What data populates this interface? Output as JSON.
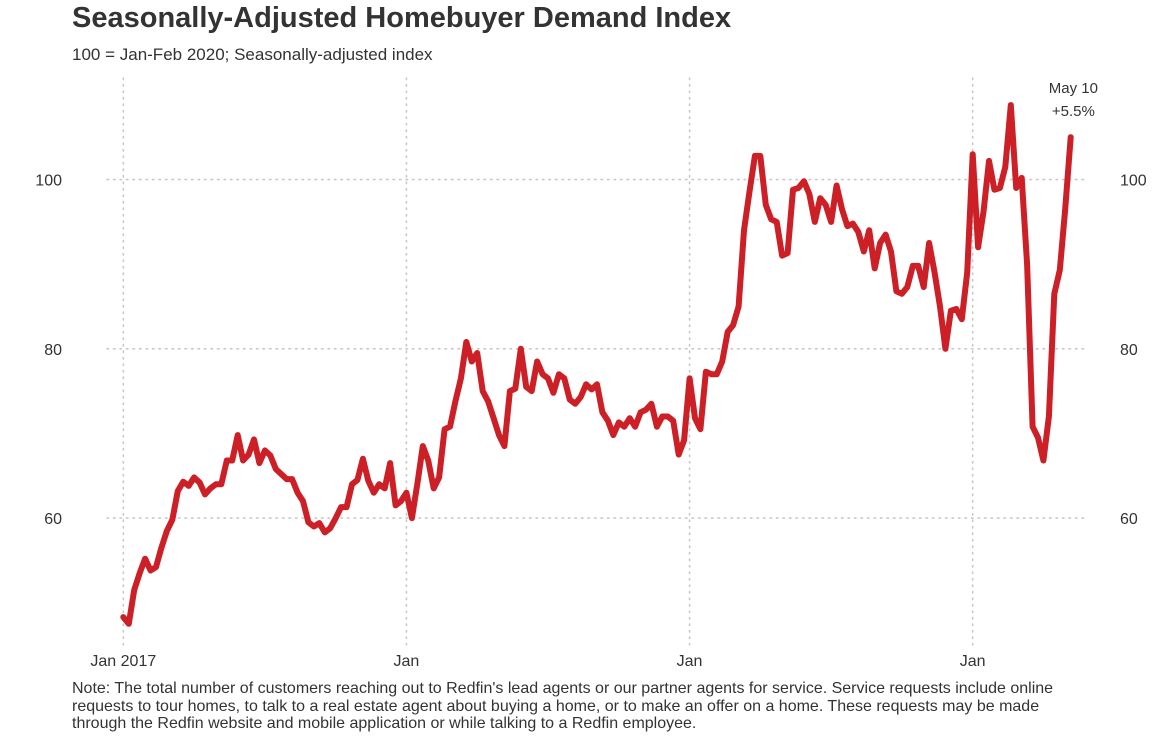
{
  "title": "Seasonally-Adjusted Homebuyer Demand Index",
  "subtitle": "100 = Jan-Feb 2020; Seasonally-adjusted index",
  "note": "Note: The total number of customers reaching out to Redfin's lead agents or our partner agents for service. Service requests include online requests to tour homes, to talk to a real estate agent about buying a home, or to make an offer on a home. These requests may be made through the Redfin website and mobile application or while talking to a Redfin employee.",
  "chart_data": {
    "type": "line",
    "title": "Seasonally-Adjusted Homebuyer Demand Index",
    "subtitle": "100 = Jan-Feb 2020; Seasonally-adjusted index",
    "xlabel": "",
    "ylabel": "",
    "x_axis": "weeks since Jan 2017",
    "x_ticks": [
      {
        "label": "Jan 2017",
        "x": 0
      },
      {
        "label": "Jan",
        "x": 52
      },
      {
        "label": "Jan",
        "x": 104
      },
      {
        "label": "Jan",
        "x": 156
      }
    ],
    "y_ticks": [
      60,
      80,
      100
    ],
    "ylim": [
      45,
      112
    ],
    "xlim": [
      -3,
      177
    ],
    "grid": true,
    "line_color": "#cc1f26",
    "annotation": {
      "lines": [
        "May 10",
        "+5.5%"
      ],
      "x": 174.5,
      "y": 105.5
    },
    "series": [
      {
        "values": [
          [
            0,
            48.3
          ],
          [
            1,
            47.5
          ],
          [
            2,
            51.5
          ],
          [
            3,
            53.5
          ],
          [
            4,
            55.2
          ],
          [
            5,
            53.8
          ],
          [
            6,
            54.2
          ],
          [
            7,
            56.5
          ],
          [
            8,
            58.5
          ],
          [
            9,
            59.8
          ],
          [
            10,
            63.2
          ],
          [
            11,
            64.3
          ],
          [
            12,
            63.8
          ],
          [
            13,
            64.8
          ],
          [
            14,
            64.2
          ],
          [
            15,
            62.8
          ],
          [
            16,
            63.5
          ],
          [
            17,
            64.0
          ],
          [
            18,
            64.0
          ],
          [
            19,
            66.8
          ],
          [
            20,
            66.8
          ],
          [
            21,
            69.8
          ],
          [
            22,
            66.8
          ],
          [
            23,
            67.5
          ],
          [
            24,
            69.3
          ],
          [
            25,
            66.5
          ],
          [
            26,
            68.0
          ],
          [
            27,
            67.4
          ],
          [
            28,
            65.8
          ],
          [
            29,
            65.2
          ],
          [
            30,
            64.6
          ],
          [
            31,
            64.6
          ],
          [
            32,
            63.0
          ],
          [
            33,
            62.0
          ],
          [
            34,
            59.5
          ],
          [
            35,
            59.0
          ],
          [
            36,
            59.4
          ],
          [
            37,
            58.3
          ],
          [
            38,
            58.8
          ],
          [
            39,
            60.0
          ],
          [
            40,
            61.3
          ],
          [
            41,
            61.3
          ],
          [
            42,
            64.0
          ],
          [
            43,
            64.5
          ],
          [
            44,
            67.0
          ],
          [
            45,
            64.4
          ],
          [
            46,
            63.0
          ],
          [
            47,
            64.0
          ],
          [
            48,
            63.5
          ],
          [
            49,
            66.5
          ],
          [
            50,
            61.5
          ],
          [
            51,
            62.0
          ],
          [
            52,
            63.0
          ],
          [
            53,
            60.0
          ],
          [
            54,
            64.0
          ],
          [
            55,
            68.5
          ],
          [
            56,
            66.8
          ],
          [
            57,
            63.5
          ],
          [
            58,
            64.8
          ],
          [
            59,
            70.5
          ],
          [
            60,
            70.8
          ],
          [
            61,
            73.8
          ],
          [
            62,
            76.5
          ],
          [
            63,
            80.8
          ],
          [
            64,
            78.5
          ],
          [
            65,
            79.5
          ],
          [
            66,
            75.0
          ],
          [
            67,
            73.8
          ],
          [
            68,
            71.8
          ],
          [
            69,
            69.8
          ],
          [
            70,
            68.5
          ],
          [
            71,
            75.0
          ],
          [
            72,
            75.3
          ],
          [
            73,
            80.0
          ],
          [
            74,
            75.5
          ],
          [
            75,
            75.0
          ],
          [
            76,
            78.5
          ],
          [
            77,
            77.0
          ],
          [
            78,
            76.5
          ],
          [
            79,
            74.8
          ],
          [
            80,
            77.0
          ],
          [
            81,
            76.5
          ],
          [
            82,
            74.0
          ],
          [
            83,
            73.5
          ],
          [
            84,
            74.3
          ],
          [
            85,
            75.8
          ],
          [
            86,
            75.2
          ],
          [
            87,
            75.8
          ],
          [
            88,
            72.5
          ],
          [
            89,
            71.5
          ],
          [
            90,
            69.8
          ],
          [
            91,
            71.3
          ],
          [
            92,
            70.8
          ],
          [
            93,
            71.8
          ],
          [
            94,
            70.8
          ],
          [
            95,
            72.5
          ],
          [
            96,
            72.8
          ],
          [
            97,
            73.5
          ],
          [
            98,
            70.8
          ],
          [
            99,
            72.0
          ],
          [
            100,
            72.0
          ],
          [
            101,
            71.5
          ],
          [
            102,
            67.5
          ],
          [
            103,
            69.2
          ],
          [
            104,
            76.5
          ],
          [
            105,
            71.8
          ],
          [
            106,
            70.5
          ],
          [
            107,
            77.3
          ],
          [
            108,
            77.0
          ],
          [
            109,
            77.0
          ],
          [
            110,
            78.5
          ],
          [
            111,
            82.0
          ],
          [
            112,
            82.8
          ],
          [
            113,
            85.0
          ],
          [
            114,
            94.0
          ],
          [
            115,
            98.5
          ],
          [
            116,
            102.8
          ],
          [
            117,
            102.8
          ],
          [
            118,
            97.0
          ],
          [
            119,
            95.3
          ],
          [
            120,
            95.0
          ],
          [
            121,
            91.0
          ],
          [
            122,
            91.3
          ],
          [
            123,
            98.8
          ],
          [
            124,
            99.0
          ],
          [
            125,
            99.8
          ],
          [
            126,
            98.3
          ],
          [
            127,
            95.0
          ],
          [
            128,
            97.8
          ],
          [
            129,
            97.0
          ],
          [
            130,
            95.0
          ],
          [
            131,
            99.3
          ],
          [
            132,
            96.5
          ],
          [
            133,
            94.5
          ],
          [
            134,
            94.8
          ],
          [
            135,
            93.8
          ],
          [
            136,
            91.5
          ],
          [
            137,
            94.0
          ],
          [
            138,
            89.5
          ],
          [
            139,
            92.5
          ],
          [
            140,
            93.5
          ],
          [
            141,
            91.5
          ],
          [
            142,
            86.8
          ],
          [
            143,
            86.5
          ],
          [
            144,
            87.3
          ],
          [
            145,
            89.8
          ],
          [
            146,
            89.8
          ],
          [
            147,
            87.3
          ],
          [
            148,
            92.5
          ],
          [
            149,
            89.0
          ],
          [
            150,
            85.0
          ],
          [
            151,
            80.0
          ],
          [
            152,
            84.5
          ],
          [
            153,
            84.7
          ],
          [
            154,
            83.5
          ],
          [
            155,
            89.0
          ],
          [
            156,
            103.0
          ],
          [
            157,
            92.0
          ],
          [
            158,
            96.3
          ],
          [
            159,
            102.2
          ],
          [
            160,
            98.8
          ],
          [
            161,
            99.0
          ],
          [
            162,
            101.5
          ],
          [
            163,
            108.8
          ],
          [
            164,
            99.0
          ],
          [
            165,
            100.2
          ],
          [
            166,
            90.0
          ],
          [
            167,
            70.8
          ],
          [
            168,
            69.5
          ],
          [
            169,
            66.8
          ],
          [
            170,
            72.0
          ],
          [
            171,
            86.5
          ],
          [
            172,
            89.3
          ],
          [
            173,
            96.5
          ],
          [
            174,
            105.0
          ]
        ]
      }
    ]
  }
}
